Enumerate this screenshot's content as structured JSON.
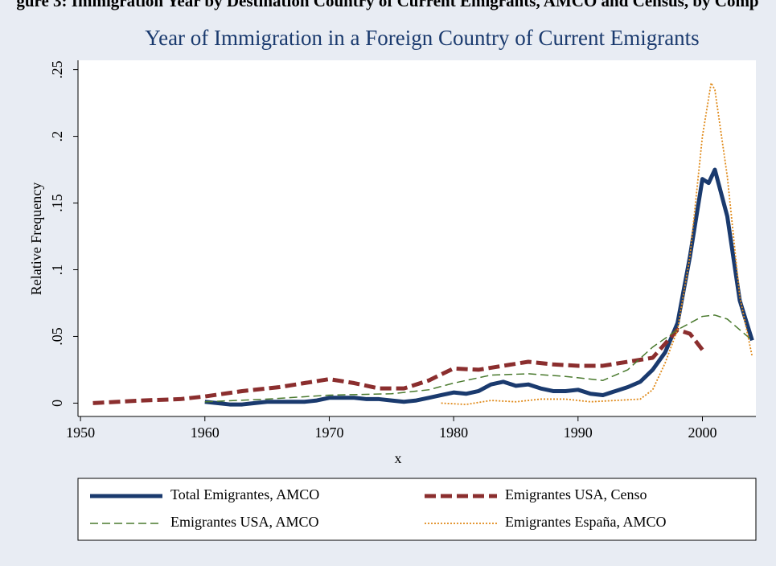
{
  "header": "gure 3: Immigration Year by Destination Country of Current Emigrants, AMCO and Census, by Comp",
  "chart_data": {
    "type": "line",
    "title": "Year of Immigration in a Foreign Country of Current Emigrants",
    "xlabel": "x",
    "ylabel": "Relative Frequency",
    "xlim": [
      1949.8,
      2004.3
    ],
    "xticks": [
      1950,
      1960,
      1970,
      1980,
      1990,
      2000
    ],
    "ylim": [
      -0.01,
      0.257
    ],
    "yticks": [
      0,
      {
        "value": 0.05,
        "label": ".05"
      },
      {
        "value": 0.1,
        "label": ".1"
      },
      {
        "value": 0.15,
        "label": ".15"
      },
      {
        "value": 0.2,
        "label": ".2"
      },
      {
        "value": 0.25,
        "label": ".25"
      }
    ],
    "grid": false,
    "legend": "bottom",
    "series": [
      {
        "name": "Total Emigrantes, AMCO",
        "color": "#1a3a6e",
        "style": "solid",
        "width": 5,
        "x": [
          1960,
          1961,
          1962,
          1963,
          1964,
          1965,
          1966,
          1967,
          1968,
          1969,
          1970,
          1971,
          1972,
          1973,
          1974,
          1975,
          1976,
          1977,
          1978,
          1979,
          1980,
          1981,
          1982,
          1983,
          1984,
          1985,
          1986,
          1987,
          1988,
          1989,
          1990,
          1991,
          1992,
          1993,
          1994,
          1995,
          1996,
          1997,
          1998,
          1999,
          2000,
          2000.5,
          2001,
          2002,
          2003,
          2004
        ],
        "values": [
          0.001,
          0,
          -0.001,
          -0.001,
          0,
          0.001,
          0.001,
          0.001,
          0.001,
          0.002,
          0.004,
          0.004,
          0.004,
          0.003,
          0.003,
          0.002,
          0.001,
          0.002,
          0.004,
          0.006,
          0.008,
          0.007,
          0.009,
          0.014,
          0.016,
          0.013,
          0.014,
          0.011,
          0.009,
          0.009,
          0.01,
          0.007,
          0.006,
          0.009,
          0.012,
          0.016,
          0.025,
          0.038,
          0.06,
          0.11,
          0.168,
          0.165,
          0.175,
          0.14,
          0.077,
          0.047
        ]
      },
      {
        "name": "Emigrantes USA, Censo",
        "color": "#8b2e2e",
        "style": "dash",
        "width": 5,
        "x": [
          1951,
          1953,
          1955,
          1958,
          1960,
          1963,
          1966,
          1968,
          1970,
          1972,
          1974,
          1976,
          1978,
          1980,
          1982,
          1984,
          1986,
          1988,
          1990,
          1992,
          1994,
          1996,
          1998,
          1999,
          2000
        ],
        "values": [
          0,
          0.001,
          0.002,
          0.003,
          0.005,
          0.009,
          0.012,
          0.015,
          0.018,
          0.015,
          0.011,
          0.011,
          0.017,
          0.026,
          0.025,
          0.028,
          0.031,
          0.029,
          0.028,
          0.028,
          0.031,
          0.034,
          0.055,
          0.052,
          0.04
        ]
      },
      {
        "name": "Emigrantes USA, AMCO",
        "color": "#4a7a2e",
        "style": "longdash",
        "width": 1.5,
        "x": [
          1960,
          1965,
          1970,
          1975,
          1978,
          1980,
          1983,
          1986,
          1989,
          1992,
          1994,
          1996,
          1998,
          2000,
          2001,
          2002,
          2003,
          2004
        ],
        "values": [
          0.001,
          0.003,
          0.006,
          0.007,
          0.01,
          0.015,
          0.021,
          0.022,
          0.02,
          0.017,
          0.025,
          0.042,
          0.055,
          0.065,
          0.066,
          0.063,
          0.055,
          0.047
        ]
      },
      {
        "name": "Emigrantes España, AMCO",
        "color": "#e08a1a",
        "style": "dot",
        "width": 1.8,
        "x": [
          1979,
          1981,
          1983,
          1985,
          1987,
          1989,
          1991,
          1993,
          1995,
          1996,
          1997,
          1998,
          1999,
          2000,
          2000.7,
          2001,
          2002,
          2003,
          2004
        ],
        "values": [
          0,
          -0.001,
          0.002,
          0.001,
          0.003,
          0.003,
          0.001,
          0.002,
          0.003,
          0.01,
          0.03,
          0.055,
          0.11,
          0.2,
          0.24,
          0.235,
          0.17,
          0.08,
          0.035
        ]
      }
    ]
  }
}
